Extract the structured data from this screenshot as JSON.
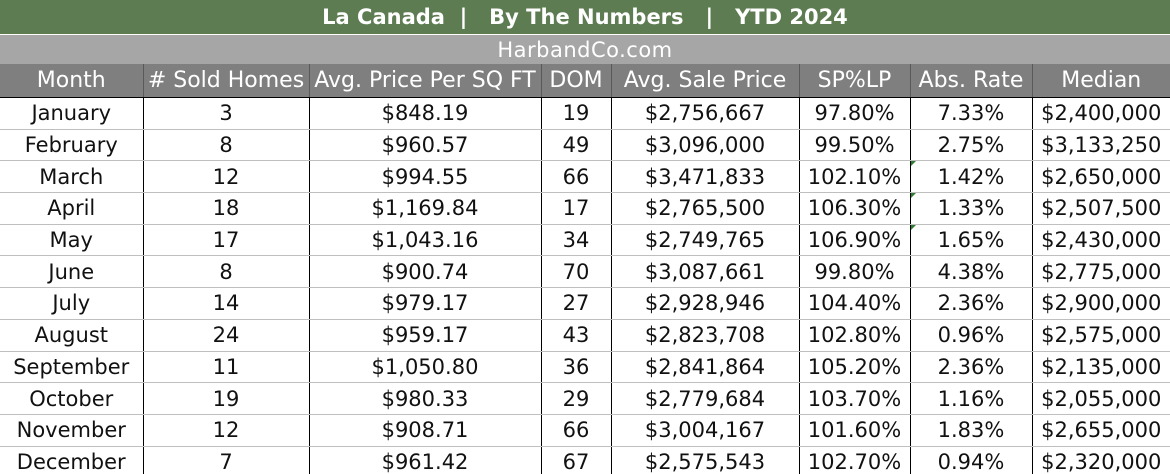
{
  "title": "La Canada  |   By The Numbers   |   YTD 2024",
  "subtitle": "HarbandCo.com",
  "columns": [
    "Month",
    "# Sold Homes",
    "Avg. Price Per SQ FT",
    "DOM",
    "Avg. Sale Price",
    "SP%LP",
    "Abs. Rate",
    "Median"
  ],
  "rows": [
    [
      "January",
      "3",
      "$848.19",
      "19",
      "$2,756,667",
      "97.80%",
      "7.33%",
      "$2,400,000"
    ],
    [
      "February",
      "8",
      "$960.57",
      "49",
      "$3,096,000",
      "99.50%",
      "2.75%",
      "$3,133,250"
    ],
    [
      "March",
      "12",
      "$994.55",
      "66",
      "$3,471,833",
      "102.10%",
      "1.42%",
      "$2,650,000"
    ],
    [
      "April",
      "18",
      "$1,169.84",
      "17",
      "$2,765,500",
      "106.30%",
      "1.33%",
      "$2,507,500"
    ],
    [
      "May",
      "17",
      "$1,043.16",
      "34",
      "$2,749,765",
      "106.90%",
      "1.65%",
      "$2,430,000"
    ],
    [
      "June",
      "8",
      "$900.74",
      "70",
      "$3,087,661",
      "99.80%",
      "4.38%",
      "$2,775,000"
    ],
    [
      "July",
      "14",
      "$979.17",
      "27",
      "$2,928,946",
      "104.40%",
      "2.36%",
      "$2,900,000"
    ],
    [
      "August",
      "24",
      "$959.17",
      "43",
      "$2,823,708",
      "102.80%",
      "0.96%",
      "$2,575,000"
    ],
    [
      "September",
      "11",
      "$1,050.80",
      "36",
      "$2,841,864",
      "105.20%",
      "2.36%",
      "$2,135,000"
    ],
    [
      "October",
      "19",
      "$980.33",
      "29",
      "$2,779,684",
      "103.70%",
      "1.16%",
      "$2,055,000"
    ],
    [
      "November",
      "12",
      "$908.71",
      "66",
      "$3,004,167",
      "101.60%",
      "1.83%",
      "$2,655,000"
    ],
    [
      "December",
      "7",
      "$961.42",
      "67",
      "$2,575,543",
      "102.70%",
      "0.94%",
      "$2,320,000"
    ]
  ],
  "colors": {
    "title_bg": "#5e7c52",
    "subtitle_bg": "#a6a6a6",
    "header_bg": "#7f7f7f",
    "error_marker": "#2e7d32"
  }
}
